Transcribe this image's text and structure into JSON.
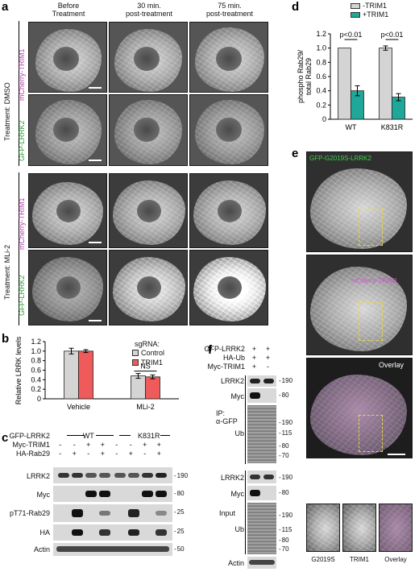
{
  "panel_letters": {
    "a": "a",
    "b": "b",
    "c": "c",
    "d": "d",
    "e": "e",
    "f": "f"
  },
  "panel_a": {
    "col_headers": [
      "Before\nTreatment",
      "30 min.\npost-treatment",
      "75 min.\npost-treatment"
    ],
    "row_labels": [
      "mCherry-TRIM1",
      "GFP-LRRK2",
      "mCherry-TRIM1",
      "GFP-LRRK2"
    ],
    "treatment_labels": [
      "Treatment: DMSO",
      "Treatment: MLi-2"
    ],
    "colors": {
      "mcherry": "#b33fa8",
      "gfp": "#2e9e3a"
    }
  },
  "panel_b": {
    "ylabel": "Relative LRRK levels",
    "legend_title": "sgRNA:",
    "sig_label": "NS",
    "colors": {
      "control": "#d4d4d4",
      "trim1": "#ef5a5a"
    },
    "chart_data": {
      "type": "bar",
      "categories": [
        "Vehicle",
        "MLi-2"
      ],
      "series": [
        {
          "name": "Control",
          "values": [
            1.0,
            0.48
          ],
          "errors": [
            0.06,
            0.05
          ]
        },
        {
          "name": "TRIM1",
          "values": [
            1.0,
            0.46
          ],
          "errors": [
            0.03,
            0.04
          ]
        }
      ],
      "ylim": [
        0,
        1.2
      ],
      "yticks": [
        "0",
        "0.2",
        "0.4",
        "0.6",
        "0.8",
        "1.0",
        "1.2"
      ]
    }
  },
  "panel_c": {
    "condition_rows": [
      {
        "label": "GFP-LRRK2",
        "cells": [
          "",
          "",
          "WT",
          "",
          "",
          "",
          "K831R",
          ""
        ]
      },
      {
        "label": "Myc-TRIM1",
        "cells": [
          "-",
          "-",
          "+",
          "+",
          "-",
          "-",
          "+",
          "+"
        ]
      },
      {
        "label": "HA-Rab29",
        "cells": [
          "-",
          "+",
          "-",
          "+",
          "-",
          "+",
          "-",
          "+"
        ]
      }
    ],
    "blot_labels": [
      "LRRK2",
      "Myc",
      "pT71-Rab29",
      "HA",
      "Actin"
    ],
    "mw_markers": [
      "190",
      "80",
      "25",
      "25",
      "50"
    ]
  },
  "panel_d": {
    "ylabel": "phospho Rab29/ total Rab29",
    "p_labels": [
      "p<0.01",
      "p<0.01"
    ],
    "colors": {
      "minus": "#d4d4d4",
      "plus": "#1fa89a"
    },
    "chart_data": {
      "type": "bar",
      "categories": [
        "WT",
        "K831R"
      ],
      "series": [
        {
          "name": "-TRIM1",
          "values": [
            1.0,
            1.0
          ],
          "errors": [
            0.0,
            0.03
          ]
        },
        {
          "name": "+TRIM1",
          "values": [
            0.4,
            0.31
          ],
          "errors": [
            0.07,
            0.05
          ]
        }
      ],
      "ylim": [
        0,
        1.2
      ],
      "yticks": [
        "0",
        "0.2",
        "0.4",
        "0.6",
        "0.8",
        "1.0",
        "1.2"
      ]
    }
  },
  "panel_e": {
    "labels": [
      "GFP-G2019S-LRRK2",
      "mCherry-TRIM1",
      "Overlay"
    ],
    "inset_labels": [
      "G2019S",
      "TRIM1",
      "Overlay"
    ],
    "colors": {
      "gfp": "#3dd14a",
      "mcherry": "#d24fd0",
      "box": "#e8d84a"
    }
  },
  "panel_f": {
    "condition_rows": [
      {
        "label": "GFP-LRRK2",
        "cells": [
          "+",
          "+"
        ]
      },
      {
        "label": "HA-Ub",
        "cells": [
          "+",
          "+"
        ]
      },
      {
        "label": "Myc-TRIM1",
        "cells": [
          "+",
          "-"
        ]
      }
    ],
    "ip_label": "IP:\nα-GFP",
    "input_label": "Input",
    "ip_blots": [
      "LRRK2",
      "Myc",
      "Ub"
    ],
    "input_blots": [
      "LRRK2",
      "Myc",
      "Ub"
    ],
    "actin_label": "Actin",
    "ip_mw": [
      "190",
      "80",
      "190",
      "115",
      "80",
      "70"
    ],
    "input_mw": [
      "190",
      "80",
      "190",
      "115",
      "80",
      "70"
    ]
  }
}
